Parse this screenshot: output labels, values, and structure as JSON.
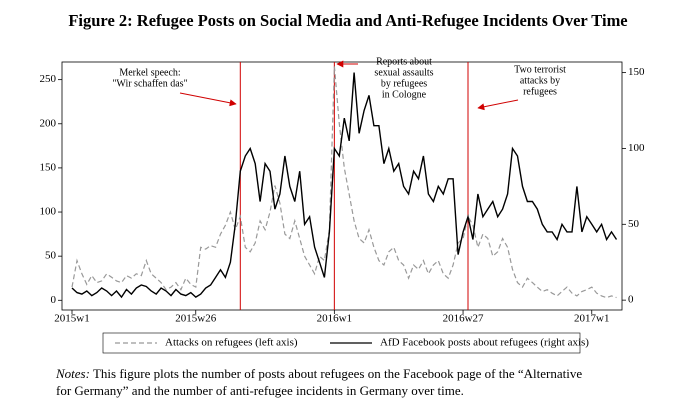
{
  "chart_data": {
    "type": "line",
    "title": "Figure 2: Refugee Posts on Social Media and Anti-Refugee Incidents Over Time",
    "categories": [
      "2015w1",
      null,
      null,
      null,
      null,
      null,
      null,
      null,
      null,
      null,
      null,
      null,
      null,
      null,
      null,
      null,
      null,
      null,
      null,
      null,
      null,
      null,
      null,
      null,
      null,
      "2015w26",
      null,
      null,
      null,
      null,
      null,
      null,
      null,
      null,
      null,
      null,
      null,
      null,
      null,
      null,
      null,
      null,
      null,
      null,
      null,
      null,
      null,
      null,
      null,
      null,
      null,
      null,
      null,
      "2016w1",
      null,
      null,
      null,
      null,
      null,
      null,
      null,
      null,
      null,
      null,
      null,
      null,
      null,
      null,
      null,
      null,
      null,
      null,
      null,
      null,
      null,
      null,
      null,
      null,
      null,
      "2016w27",
      null,
      null,
      null,
      null,
      null,
      null,
      null,
      null,
      null,
      null,
      null,
      null,
      null,
      null,
      null,
      null,
      null,
      null,
      null,
      null,
      null,
      null,
      null,
      null,
      null,
      "2017w1",
      null,
      null,
      null,
      null,
      null
    ],
    "series": [
      {
        "name": "Attacks on refugees (left axis)",
        "color": "#999999",
        "dash": true,
        "axis": "y",
        "values": [
          15,
          45,
          30,
          18,
          28,
          20,
          22,
          30,
          26,
          22,
          20,
          28,
          25,
          30,
          28,
          45,
          30,
          25,
          20,
          12,
          15,
          20,
          12,
          25,
          18,
          15,
          60,
          58,
          62,
          60,
          75,
          85,
          100,
          80,
          95,
          60,
          55,
          65,
          90,
          80,
          100,
          130,
          110,
          75,
          70,
          90,
          70,
          50,
          40,
          30,
          50,
          45,
          80,
          265,
          200,
          150,
          120,
          90,
          70,
          65,
          80,
          60,
          45,
          40,
          55,
          60,
          45,
          40,
          25,
          40,
          35,
          45,
          30,
          40,
          45,
          30,
          25,
          40,
          65,
          70,
          95,
          85,
          60,
          75,
          70,
          50,
          55,
          70,
          60,
          35,
          20,
          15,
          25,
          20,
          15,
          10,
          12,
          8,
          5,
          10,
          15,
          8,
          5,
          10,
          12,
          15,
          8,
          5,
          3,
          5,
          3
        ]
      },
      {
        "name": "AfD Facebook posts about refugees (right axis)",
        "color": "#000000",
        "dash": false,
        "axis": "y2",
        "values": [
          8,
          5,
          4,
          6,
          3,
          5,
          8,
          6,
          3,
          6,
          2,
          7,
          4,
          8,
          10,
          9,
          6,
          4,
          8,
          6,
          3,
          7,
          4,
          3,
          5,
          2,
          4,
          8,
          10,
          15,
          20,
          15,
          25,
          50,
          85,
          95,
          100,
          90,
          65,
          90,
          85,
          60,
          70,
          95,
          75,
          65,
          85,
          50,
          55,
          35,
          25,
          15,
          45,
          100,
          95,
          120,
          105,
          150,
          110,
          125,
          135,
          115,
          115,
          90,
          100,
          85,
          90,
          75,
          70,
          85,
          80,
          95,
          70,
          65,
          75,
          70,
          80,
          80,
          30,
          45,
          55,
          40,
          70,
          55,
          60,
          65,
          55,
          60,
          70,
          100,
          95,
          75,
          65,
          65,
          60,
          50,
          45,
          45,
          40,
          50,
          45,
          45,
          75,
          45,
          55,
          50,
          45,
          50,
          40,
          45,
          40
        ]
      }
    ],
    "ylim": [
      -11,
      270
    ],
    "yticks": [
      0,
      50,
      100,
      150,
      200,
      250
    ],
    "y2lim": [
      -6.5,
      157
    ],
    "y2ticks": [
      0,
      50,
      100,
      150
    ],
    "events": [
      {
        "x": 34,
        "text": [
          "Merkel speech:",
          "\"Wir schaffen das\""
        ],
        "color": "#d00000"
      },
      {
        "x": 53,
        "text": [
          "Reports about",
          "sexual assaults",
          "by refugees",
          "in Cologne"
        ],
        "color": "#d00000"
      },
      {
        "x": 80,
        "text": [
          "Two terrorist",
          "attacks by",
          "refugees"
        ],
        "color": "#d00000"
      }
    ],
    "notes_label": "Notes:",
    "notes": [
      "This figure plots the number of posts about refugees on the Facebook page of the “Alternative",
      "for Germany” and the number of anti-refugee incidents in Germany over time."
    ]
  }
}
